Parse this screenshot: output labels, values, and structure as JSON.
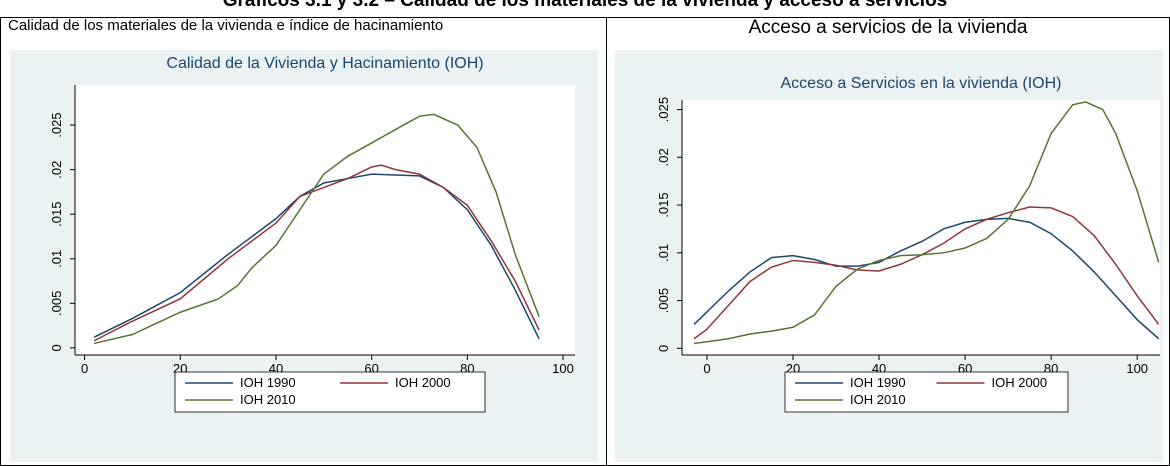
{
  "page_title": "Gráficos 3.1 y 3.2 – Calidad de los materiales de la vivienda y acceso a servicios",
  "chart_data": [
    {
      "type": "line",
      "panel_title": "Calidad de los materiales de la vivienda e índice de hacinamiento",
      "title": "Calidad de la Vivienda y Hacinamiento (IOH)",
      "x_label": "IOH",
      "xlim": [
        -2,
        102.5
      ],
      "xticks": [
        0,
        20,
        40,
        60,
        80,
        100
      ],
      "ylim": [
        -0.0008,
        0.0295
      ],
      "yticks": [
        0,
        {
          "value": 0.005,
          "label": ".005"
        },
        {
          "value": 0.01,
          "label": ".01"
        },
        {
          "value": 0.015,
          "label": ".015"
        },
        {
          "value": 0.02,
          "label": ".02"
        },
        {
          "value": 0.025,
          "label": ".025"
        }
      ],
      "series": [
        {
          "name": "IOH 1990",
          "color": "#1a476f",
          "x": [
            2,
            10,
            20,
            30,
            40,
            45,
            50,
            55,
            60,
            65,
            70,
            75,
            80,
            85,
            90,
            95
          ],
          "values": [
            0.0012,
            0.0033,
            0.0062,
            0.0105,
            0.0145,
            0.017,
            0.0185,
            0.019,
            0.0195,
            0.0194,
            0.0193,
            0.018,
            0.0155,
            0.0115,
            0.0065,
            0.001
          ]
        },
        {
          "name": "IOH 2000",
          "color": "#90353b",
          "x": [
            2,
            10,
            20,
            30,
            40,
            45,
            50,
            55,
            60,
            62,
            65,
            70,
            75,
            80,
            85,
            90,
            95
          ],
          "values": [
            0.0008,
            0.003,
            0.0055,
            0.01,
            0.014,
            0.017,
            0.018,
            0.019,
            0.0203,
            0.0205,
            0.02,
            0.0195,
            0.018,
            0.016,
            0.012,
            0.0075,
            0.002
          ]
        },
        {
          "name": "IOH 2010",
          "color": "#55752f",
          "x": [
            2,
            10,
            20,
            28,
            32,
            35,
            40,
            45,
            50,
            55,
            60,
            65,
            70,
            73,
            78,
            82,
            86,
            90,
            95
          ],
          "values": [
            0.0005,
            0.0015,
            0.004,
            0.0055,
            0.007,
            0.009,
            0.0115,
            0.0155,
            0.0195,
            0.0215,
            0.023,
            0.0245,
            0.026,
            0.0262,
            0.025,
            0.0225,
            0.0175,
            0.0105,
            0.0035
          ]
        }
      ]
    },
    {
      "type": "line",
      "panel_title": "Acceso a servicios de la vivienda",
      "title": "Acceso a Servicios en la vivienda (IOH)",
      "x_label": "IOH",
      "xlim": [
        -5.8,
        105.3
      ],
      "xticks": [
        0,
        20,
        40,
        60,
        80,
        100
      ],
      "ylim": [
        -0.0007,
        0.026
      ],
      "yticks": [
        0,
        {
          "value": 0.005,
          "label": ".005"
        },
        {
          "value": 0.01,
          "label": ".01"
        },
        {
          "value": 0.015,
          "label": ".015"
        },
        {
          "value": 0.02,
          "label": ".02"
        },
        {
          "value": 0.025,
          "label": ".025"
        }
      ],
      "series": [
        {
          "name": "IOH 1990",
          "color": "#1a476f",
          "x": [
            -3,
            5,
            10,
            15,
            20,
            25,
            30,
            35,
            40,
            45,
            50,
            55,
            60,
            65,
            70,
            75,
            80,
            85,
            90,
            95,
            100,
            105
          ],
          "values": [
            0.0025,
            0.006,
            0.008,
            0.0095,
            0.0097,
            0.0093,
            0.0086,
            0.0086,
            0.009,
            0.0102,
            0.0112,
            0.0125,
            0.0132,
            0.0135,
            0.0136,
            0.0132,
            0.012,
            0.0102,
            0.008,
            0.0055,
            0.003,
            0.001
          ]
        },
        {
          "name": "IOH 2000",
          "color": "#90353b",
          "x": [
            -3,
            0,
            5,
            10,
            15,
            20,
            25,
            30,
            35,
            40,
            45,
            50,
            55,
            60,
            65,
            70,
            75,
            80,
            85,
            90,
            95,
            100,
            105
          ],
          "values": [
            0.001,
            0.002,
            0.0045,
            0.007,
            0.0085,
            0.0092,
            0.009,
            0.0087,
            0.0082,
            0.0081,
            0.0088,
            0.0098,
            0.011,
            0.0125,
            0.0135,
            0.0142,
            0.0148,
            0.0147,
            0.0138,
            0.0118,
            0.0088,
            0.0055,
            0.0025
          ]
        },
        {
          "name": "IOH 2010",
          "color": "#55752f",
          "x": [
            -3,
            5,
            10,
            15,
            20,
            25,
            30,
            35,
            40,
            45,
            50,
            55,
            60,
            65,
            70,
            75,
            80,
            85,
            88,
            92,
            95,
            100,
            105
          ],
          "values": [
            0.0005,
            0.001,
            0.0015,
            0.0018,
            0.0022,
            0.0035,
            0.0065,
            0.0083,
            0.0092,
            0.0097,
            0.0098,
            0.01,
            0.0105,
            0.0115,
            0.0135,
            0.017,
            0.0225,
            0.0255,
            0.0258,
            0.025,
            0.0225,
            0.0165,
            0.009
          ]
        }
      ]
    }
  ]
}
